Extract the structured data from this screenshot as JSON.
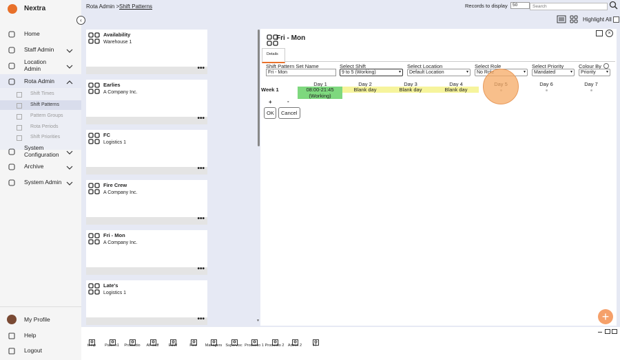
{
  "brand": "Nextra",
  "nav": [
    {
      "label": "Home"
    },
    {
      "label": "Staff Admin"
    },
    {
      "label": "Location Admin"
    },
    {
      "label": "Rota Admin",
      "children": [
        "Shift Times",
        "Shift Patterns",
        "Pattern Groups",
        "Rota Periods",
        "Shift Priorities"
      ]
    },
    {
      "label": "System Configuration"
    },
    {
      "label": "Archive"
    },
    {
      "label": "System Admin"
    }
  ],
  "footer_nav": [
    "My Profile",
    "Help",
    "Logout"
  ],
  "breadcrumb": {
    "parent": "Rota Admin >",
    "current": "Shift Patterns"
  },
  "toolbar": {
    "records_label": "Records to display",
    "records_value": "50",
    "search_placeholder": "Search",
    "highlight_all": "Highlight All"
  },
  "cards": [
    {
      "title": "Availability",
      "subtitle": "Warehouse 1"
    },
    {
      "title": "Earlies",
      "subtitle": "A Company Inc."
    },
    {
      "title": "FC",
      "subtitle": "Logistics 1"
    },
    {
      "title": "Fire Crew",
      "subtitle": "A Company Inc."
    },
    {
      "title": "Fri - Mon",
      "subtitle": "A Company Inc."
    },
    {
      "title": "Late's",
      "subtitle": "Logistics 1"
    }
  ],
  "panel": {
    "title": "Fri - Mon",
    "tab": "Details",
    "fields": [
      {
        "label": "Shift Pattern Set Name",
        "value": "Fri - Mon"
      },
      {
        "label": "Select Shift",
        "value": "9 to 5 (Working)"
      },
      {
        "label": "Select Location",
        "value": "Default Location"
      },
      {
        "label": "Select Role",
        "value": "No Role"
      },
      {
        "label": "Select Priority",
        "value": "Mandated"
      },
      {
        "label": "Colour By",
        "value": "Priority"
      }
    ],
    "days": [
      "Day 1",
      "Day 2",
      "Day 3",
      "Day 4",
      "Day 5",
      "Day 6",
      "Day 7"
    ],
    "week": "Week 1",
    "cells": [
      "08:00-21:45 (Working)",
      "Blank day",
      "Blank day",
      "Blank day"
    ],
    "add": "+",
    "remove": "-",
    "ok": "OK",
    "cancel": "Cancel"
  },
  "tabs": [
    "temp",
    "Pattern1",
    "Productio",
    "All staff",
    "E&W",
    "Flex",
    "Managers",
    "Supervisc",
    "Productio 1",
    "Productio 2",
    "Admin 2",
    "IT"
  ]
}
